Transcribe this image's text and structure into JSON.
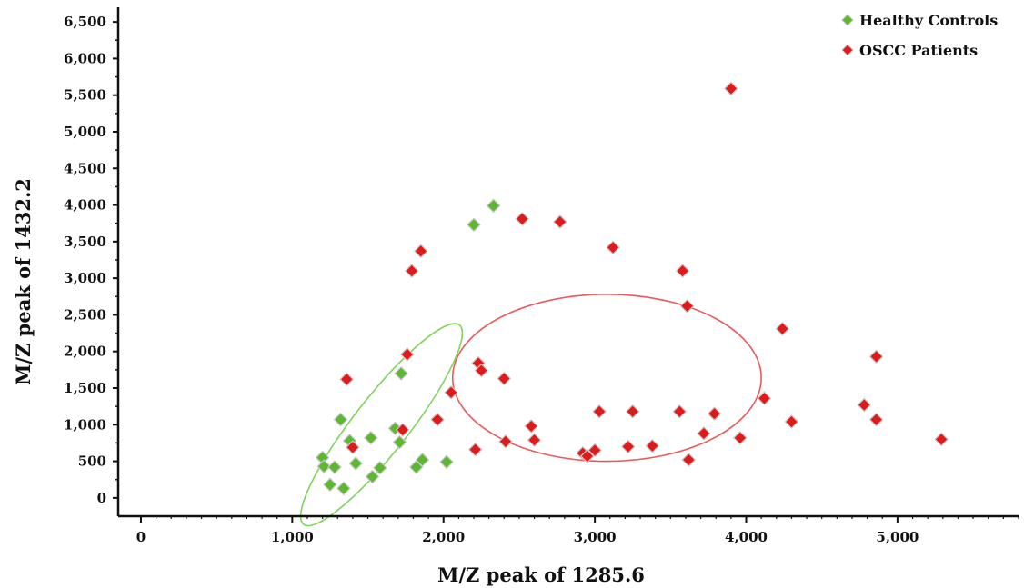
{
  "chart_data": {
    "type": "scatter",
    "xlabel": "M/Z peak of 1285.6",
    "ylabel": "M/Z peak of 1432.2",
    "xlim": [
      -150,
      5800
    ],
    "ylim": [
      -250,
      6700
    ],
    "x_ticks": [
      0,
      1000,
      2000,
      3000,
      4000,
      5000
    ],
    "x_tick_labels": [
      "0",
      "1,000",
      "2,000",
      "3,000",
      "4,000",
      "5,000"
    ],
    "y_ticks": [
      0,
      500,
      1000,
      1500,
      2000,
      2500,
      3000,
      3500,
      4000,
      4500,
      5000,
      5500,
      6000,
      6500
    ],
    "y_tick_labels": [
      "0",
      "500",
      "1,000",
      "1,500",
      "2,000",
      "2,500",
      "3,000",
      "3,500",
      "4,000",
      "4,500",
      "5,000",
      "5,500",
      "6,000",
      "6,500"
    ],
    "grid": false,
    "legend_position": "top-right",
    "series": [
      {
        "name": "Healthy Controls",
        "color": "#5cb82e",
        "marker": "diamond",
        "points": [
          [
            1200,
            550
          ],
          [
            1210,
            430
          ],
          [
            1250,
            180
          ],
          [
            1280,
            420
          ],
          [
            1320,
            1070
          ],
          [
            1340,
            130
          ],
          [
            1380,
            780
          ],
          [
            1420,
            470
          ],
          [
            1520,
            820
          ],
          [
            1530,
            290
          ],
          [
            1580,
            410
          ],
          [
            1680,
            950
          ],
          [
            1710,
            760
          ],
          [
            1720,
            1700
          ],
          [
            1820,
            420
          ],
          [
            1860,
            520
          ],
          [
            2020,
            490
          ],
          [
            2200,
            3730
          ],
          [
            2330,
            3990
          ]
        ]
      },
      {
        "name": "OSCC Patients",
        "color": "#e01a1a",
        "marker": "diamond",
        "points": [
          [
            1360,
            1620
          ],
          [
            1400,
            690
          ],
          [
            1730,
            930
          ],
          [
            1760,
            1960
          ],
          [
            1790,
            3100
          ],
          [
            1850,
            3370
          ],
          [
            1960,
            1070
          ],
          [
            2050,
            1440
          ],
          [
            2210,
            660
          ],
          [
            2230,
            1840
          ],
          [
            2250,
            1740
          ],
          [
            2400,
            1630
          ],
          [
            2410,
            770
          ],
          [
            2520,
            3810
          ],
          [
            2580,
            980
          ],
          [
            2600,
            790
          ],
          [
            2770,
            3770
          ],
          [
            2920,
            610
          ],
          [
            2950,
            570
          ],
          [
            3000,
            650
          ],
          [
            3030,
            1180
          ],
          [
            3120,
            3420
          ],
          [
            3220,
            700
          ],
          [
            3250,
            1180
          ],
          [
            3380,
            710
          ],
          [
            3560,
            1180
          ],
          [
            3580,
            3100
          ],
          [
            3610,
            2620
          ],
          [
            3620,
            520
          ],
          [
            3720,
            880
          ],
          [
            3790,
            1150
          ],
          [
            3900,
            5590
          ],
          [
            3960,
            820
          ],
          [
            4120,
            1360
          ],
          [
            4240,
            2310
          ],
          [
            4300,
            1040
          ],
          [
            4780,
            1270
          ],
          [
            4860,
            1930
          ],
          [
            4860,
            1070
          ],
          [
            5290,
            800
          ]
        ]
      }
    ],
    "annotations": [
      {
        "type": "ellipse",
        "color": "#7fd35a",
        "cx": 1590,
        "cy": 1000,
        "rx": 1020,
        "ry": 220,
        "angle_deg": 52
      },
      {
        "type": "ellipse",
        "color": "#ea5a5a",
        "cx": 3080,
        "cy": 1640,
        "rx": 1020,
        "ry": 1140,
        "angle_deg": 0
      }
    ]
  }
}
